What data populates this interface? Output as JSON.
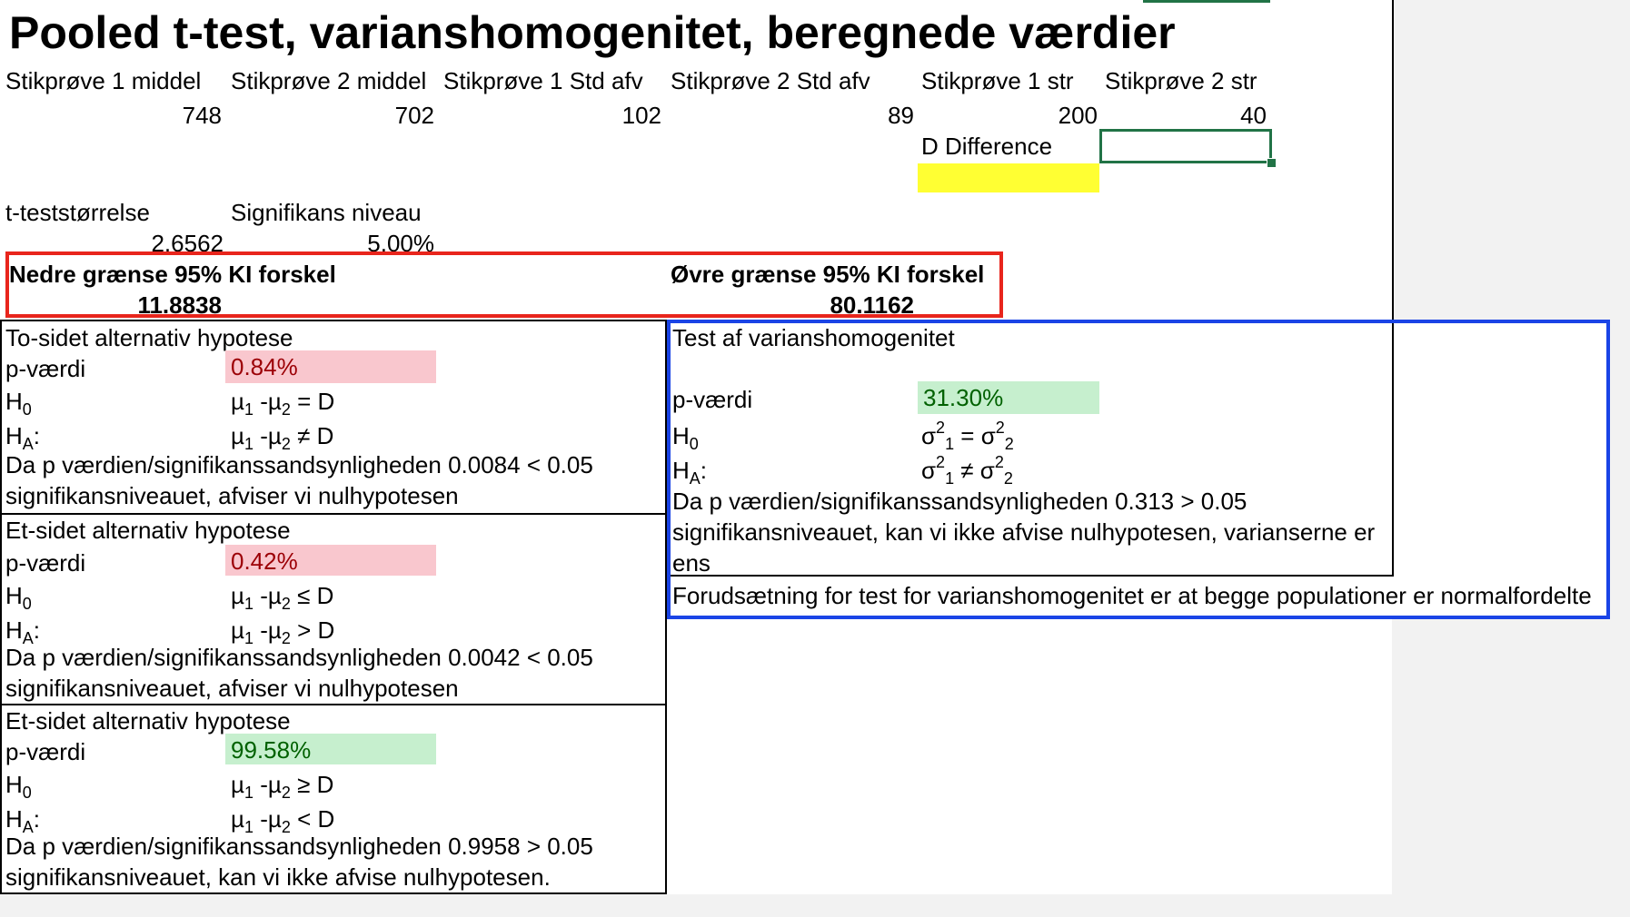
{
  "title": "Pooled t-test, varianshomogenitet, beregnede værdier",
  "inputs": {
    "headers": [
      "Stikprøve 1 middel",
      "Stikprøve 2 middel",
      "Stikprøve 1 Std afv",
      "Stikprøve 2 Std afv",
      "Stikprøve 1 str",
      "Stikprøve 2 str"
    ],
    "values": [
      "748",
      "702",
      "102",
      "89",
      "200",
      "40"
    ],
    "d_label": "D Difference",
    "d_value": ""
  },
  "stats": {
    "t_label": "t-teststørrelse",
    "t_value": "2.6562",
    "sig_label": "Signifikans niveau",
    "sig_value": "5.00%"
  },
  "ci": {
    "lower_label": "Nedre grænse 95% KI forskel",
    "lower_value": "11.8838",
    "upper_label": "Øvre grænse 95% KI forskel",
    "upper_value": "80.1162"
  },
  "test_two_sided": {
    "heading": "To-sidet alternativ hypotese",
    "p_label": "p-værdi",
    "p_value": "0.84%",
    "h0_symbol": "H",
    "h0_sub": "0",
    "ha_symbol": "H",
    "ha_sub": "A",
    "ha_colon": ":",
    "h0_expr_a": "µ",
    "h0_expr_b": " -µ",
    "h0_expr_c": " = D",
    "ha_expr_c": " ≠ D",
    "conclusion_1": "Da p værdien/signifikanssandsynligheden 0.0084 < 0.05",
    "conclusion_2": "signifikansniveauet, afviser vi nulhypotesen"
  },
  "test_one_sided_a": {
    "heading": "Et-sidet alternativ hypotese",
    "p_label": "p-værdi",
    "p_value": "0.42%",
    "h0_expr_c": " ≤ D",
    "ha_expr_c": " > D",
    "conclusion_1": "Da p værdien/signifikanssandsynligheden 0.0042 < 0.05",
    "conclusion_2": "signifikansniveauet, afviser vi nulhypotesen"
  },
  "test_one_sided_b": {
    "heading": "Et-sidet alternativ hypotese",
    "p_label": "p-værdi",
    "p_value": "99.58%",
    "h0_expr_c": " ≥ D",
    "ha_expr_c": " < D",
    "conclusion_1": "Da p værdien/signifikanssandsynligheden  0.9958 > 0.05",
    "conclusion_2": "signifikansniveauet, kan vi ikke afvise nulhypotesen."
  },
  "variance_test": {
    "heading": "Test af varianshomogenitet",
    "p_label": "p-værdi",
    "p_value": "31.30%",
    "sigma": "σ",
    "h0_op": " = ",
    "ha_op": " ≠ ",
    "conclusion_1": "Da p værdien/signifikanssandsynligheden 0.313 > 0.05",
    "conclusion_2": "signifikansniveauet, kan vi ikke afvise nulhypotesen, varianserne er",
    "conclusion_3": "ens",
    "assumption": "Forudsætning for test for varianshomogenitet er at begge populationer er normalfordelte"
  },
  "colors": {
    "red_fill": "#f9c7ce",
    "red_text": "#9c0006",
    "green_fill": "#c6efce",
    "green_text": "#006100",
    "frame_red": "#e8251c",
    "frame_blue": "#1a44e6",
    "highlight_yellow": "#ffff33",
    "selection_green": "#217346"
  }
}
